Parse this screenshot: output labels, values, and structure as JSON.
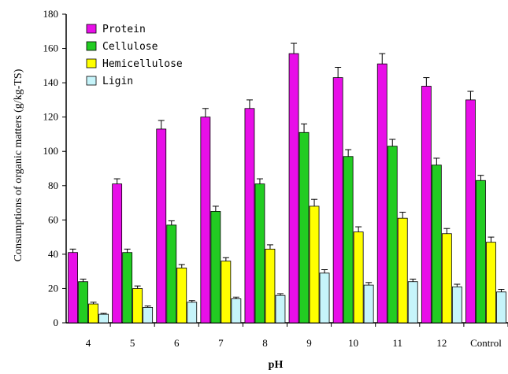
{
  "chart_data": {
    "type": "bar",
    "xlabel": "pH",
    "ylabel": "Consumptions of organic matters (g/kg-TS)",
    "ylim": [
      0,
      180
    ],
    "yticks": [
      0,
      20,
      40,
      60,
      80,
      100,
      120,
      140,
      160,
      180
    ],
    "grid": false,
    "legend_position": "top-left",
    "categories": [
      "4",
      "5",
      "6",
      "7",
      "8",
      "9",
      "10",
      "11",
      "12",
      "Control"
    ],
    "series": [
      {
        "name": "Protein",
        "color": "#E80FE8",
        "values": [
          41,
          81,
          113,
          120,
          125,
          157,
          143,
          151,
          138,
          130
        ],
        "errors": [
          2,
          3,
          5,
          5,
          5,
          6,
          6,
          6,
          5,
          5
        ]
      },
      {
        "name": "Cellulose",
        "color": "#22CC22",
        "values": [
          24,
          41,
          57,
          65,
          81,
          111,
          97,
          103,
          92,
          83
        ],
        "errors": [
          1.5,
          2,
          2.5,
          3,
          3,
          5,
          4,
          4,
          4,
          3
        ]
      },
      {
        "name": "Hemicellulose",
        "color": "#FFFF00",
        "values": [
          11,
          20,
          32,
          36,
          43,
          68,
          53,
          61,
          52,
          47
        ],
        "errors": [
          1,
          1.5,
          2,
          2,
          2.5,
          4,
          3,
          3.5,
          3,
          3
        ]
      },
      {
        "name": "Ligin",
        "color": "#C6F4FA",
        "values": [
          5,
          9,
          12,
          14,
          16,
          29,
          22,
          24,
          21,
          18
        ],
        "errors": [
          0.5,
          0.8,
          1,
          1,
          1,
          2,
          1.5,
          1.5,
          1.5,
          1.5
        ]
      }
    ]
  }
}
